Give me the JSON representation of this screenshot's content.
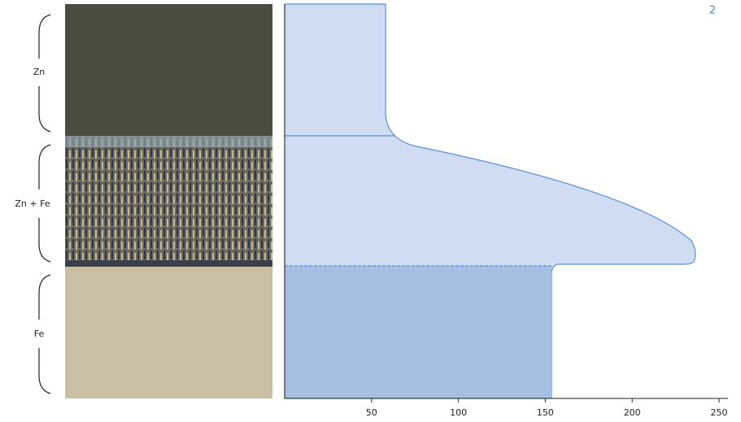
{
  "figure_number": "2",
  "layers": [
    {
      "label": "Zn"
    },
    {
      "label": "Zn + Fe"
    },
    {
      "label": "Fe"
    }
  ],
  "x_axis": {
    "xlim": [
      0,
      250
    ],
    "xticks": [
      50,
      100,
      150,
      200,
      250
    ]
  }
}
